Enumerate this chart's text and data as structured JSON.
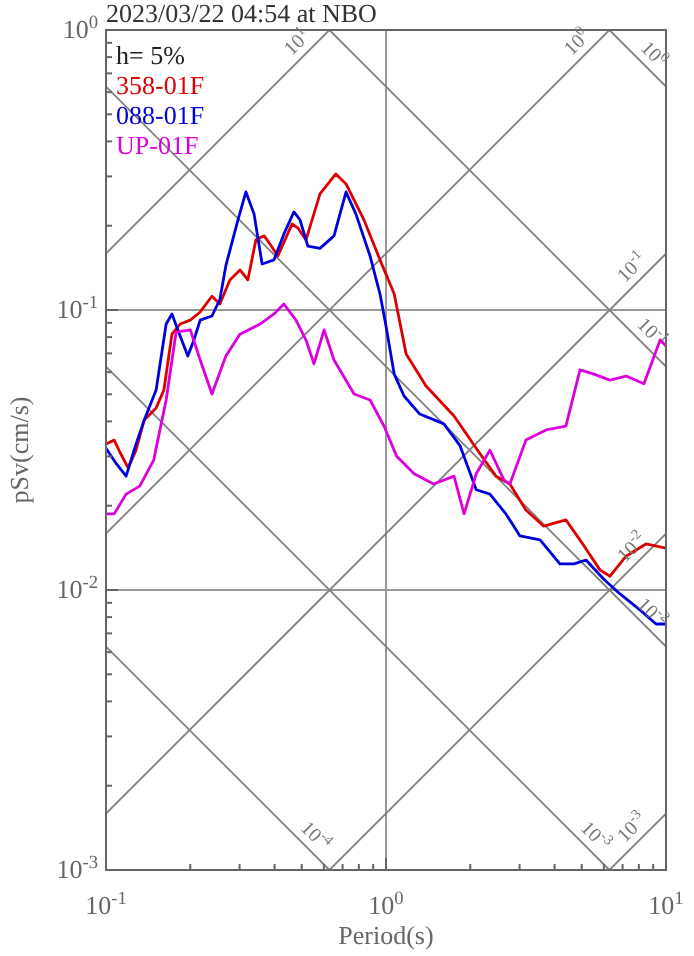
{
  "chart_data": {
    "type": "line",
    "title": "2023/03/22 04:54 at NBO",
    "xlabel": "Period(s)",
    "ylabel": "pSv(cm/s)",
    "legend_title": "h= 5%",
    "legend": "top left",
    "log": "xy",
    "grid": true,
    "xlim": [
      0.1,
      10
    ],
    "ylim": [
      0.001,
      1
    ],
    "xticks": [
      {
        "value": 0.1,
        "label": "10$^{-1}$"
      },
      {
        "value": 0.2,
        "label": null
      },
      {
        "value": 0.3,
        "label": null
      },
      {
        "value": 0.4,
        "label": null
      },
      {
        "value": 0.5,
        "label": null
      },
      {
        "value": 0.6,
        "label": null
      },
      {
        "value": 0.7,
        "label": null
      },
      {
        "value": 0.8,
        "label": null
      },
      {
        "value": 0.9,
        "label": null
      },
      {
        "value": 1,
        "label": "10$^{0}$"
      },
      {
        "value": 2,
        "label": null
      },
      {
        "value": 3,
        "label": null
      },
      {
        "value": 4,
        "label": null
      },
      {
        "value": 5,
        "label": null
      },
      {
        "value": 6,
        "label": null
      },
      {
        "value": 7,
        "label": null
      },
      {
        "value": 8,
        "label": null
      },
      {
        "value": 9,
        "label": null
      },
      {
        "value": 10,
        "label": "10$^{1}$"
      }
    ],
    "yticks": [
      {
        "value": 0.001,
        "label": "10$^{-3}$"
      },
      {
        "value": 0.002,
        "label": null
      },
      {
        "value": 0.003,
        "label": null
      },
      {
        "value": 0.004,
        "label": null
      },
      {
        "value": 0.005,
        "label": null
      },
      {
        "value": 0.006,
        "label": null
      },
      {
        "value": 0.007,
        "label": null
      },
      {
        "value": 0.008,
        "label": null
      },
      {
        "value": 0.009,
        "label": null
      },
      {
        "value": 0.01,
        "label": "10$^{-2}$"
      },
      {
        "value": 0.02,
        "label": null
      },
      {
        "value": 0.03,
        "label": null
      },
      {
        "value": 0.04,
        "label": null
      },
      {
        "value": 0.05,
        "label": null
      },
      {
        "value": 0.06,
        "label": null
      },
      {
        "value": 0.07,
        "label": null
      },
      {
        "value": 0.08,
        "label": null
      },
      {
        "value": 0.09,
        "label": null
      },
      {
        "value": 0.1,
        "label": "10$^{-1}$"
      },
      {
        "value": 0.2,
        "label": null
      },
      {
        "value": 0.3,
        "label": null
      },
      {
        "value": 0.4,
        "label": null
      },
      {
        "value": 0.5,
        "label": null
      },
      {
        "value": 0.6,
        "label": null
      },
      {
        "value": 0.7,
        "label": null
      },
      {
        "value": 0.8,
        "label": null
      },
      {
        "value": 0.9,
        "label": null
      },
      {
        "value": 1,
        "label": "10$^{0}$"
      }
    ],
    "series": [
      {
        "line_style": "solid",
        "color": "#808080",
        "name": "10$^{1}$",
        "x": [
          0.1,
          0.628
        ],
        "values": [
          0.159,
          1
        ]
      },
      {
        "line_style": "solid",
        "color": "#808080",
        "name": "10$^{0}$",
        "x": [
          0.1,
          6.28
        ],
        "values": [
          0.0159,
          1
        ]
      },
      {
        "line_style": "solid",
        "color": "#808080",
        "name": "10$^{-1}$",
        "x": [
          0.1,
          10
        ],
        "values": [
          0.00159,
          0.159
        ]
      },
      {
        "line_style": "solid",
        "color": "#808080",
        "name": "10$^{-2}$",
        "x": [
          0.628,
          10
        ],
        "values": [
          0.001,
          0.0159
        ]
      },
      {
        "line_style": "solid",
        "color": "#808080",
        "name": "10$^{-3}$",
        "x": [
          6.28,
          10
        ],
        "values": [
          0.001,
          0.00159
        ]
      },
      {
        "line_style": "solid",
        "color": "#808080",
        "name": "10$^{0}$",
        "x": [
          6.28,
          10
        ],
        "values": [
          1,
          0.628
        ]
      },
      {
        "line_style": "solid",
        "color": "#808080",
        "name": "10$^{-1}$",
        "x": [
          0.628,
          10
        ],
        "values": [
          1,
          0.0628
        ]
      },
      {
        "line_style": "solid",
        "color": "#808080",
        "name": "10$^{-2}$",
        "x": [
          0.1,
          10
        ],
        "values": [
          0.628,
          0.00628
        ]
      },
      {
        "line_style": "solid",
        "color": "#808080",
        "name": "10$^{-3}$",
        "x": [
          0.1,
          6.28
        ],
        "values": [
          0.0628,
          0.001
        ]
      },
      {
        "line_style": "solid",
        "color": "#808080",
        "name": "10$^{-4}$",
        "x": [
          0.1,
          0.628
        ],
        "values": [
          0.00628,
          0.001
        ]
      },
      {
        "name": "358-01F",
        "color": "#dd0000",
        "x": [
          0.1,
          0.107,
          0.112,
          0.12,
          0.128,
          0.137,
          0.151,
          0.161,
          0.172,
          0.184,
          0.2,
          0.217,
          0.239,
          0.255,
          0.277,
          0.301,
          0.321,
          0.343,
          0.367,
          0.385,
          0.411,
          0.462,
          0.485,
          0.518,
          0.581,
          0.662,
          0.72,
          0.834,
          0.952,
          1.07,
          1.18,
          1.39,
          1.75,
          2.17,
          2.47,
          2.77,
          3.16,
          3.66,
          4.39,
          5.09,
          5.81,
          6.31,
          7.2,
          8.48,
          10
        ],
        "values": [
          0.0332,
          0.0343,
          0.0311,
          0.0273,
          0.0316,
          0.0405,
          0.0447,
          0.0518,
          0.082,
          0.0891,
          0.092,
          0.0984,
          0.112,
          0.105,
          0.128,
          0.139,
          0.128,
          0.178,
          0.184,
          0.172,
          0.156,
          0.203,
          0.196,
          0.178,
          0.26,
          0.306,
          0.282,
          0.21,
          0.151,
          0.114,
          0.0697,
          0.0535,
          0.0418,
          0.0306,
          0.0255,
          0.0239,
          0.0193,
          0.0169,
          0.0178,
          0.0144,
          0.0118,
          0.0112,
          0.0132,
          0.0146,
          0.0141
        ]
      },
      {
        "name": "088-01F",
        "color": "#0000dd",
        "x": [
          0.1,
          0.109,
          0.118,
          0.128,
          0.137,
          0.151,
          0.164,
          0.172,
          0.184,
          0.196,
          0.206,
          0.217,
          0.239,
          0.255,
          0.268,
          0.296,
          0.316,
          0.338,
          0.361,
          0.398,
          0.432,
          0.469,
          0.493,
          0.526,
          0.581,
          0.652,
          0.72,
          0.781,
          0.877,
          0.952,
          1.0,
          1.07,
          1.16,
          1.32,
          1.61,
          1.84,
          2.1,
          2.35,
          2.68,
          3.01,
          3.55,
          4.18,
          4.69,
          5.18,
          6.01,
          6.85,
          8.07,
          9.21,
          10
        ],
        "values": [
          0.0321,
          0.0282,
          0.0255,
          0.0332,
          0.0405,
          0.0518,
          0.0891,
          0.0968,
          0.0807,
          0.0685,
          0.0781,
          0.092,
          0.0952,
          0.109,
          0.144,
          0.21,
          0.264,
          0.22,
          0.146,
          0.151,
          0.187,
          0.224,
          0.21,
          0.169,
          0.166,
          0.184,
          0.264,
          0.22,
          0.156,
          0.114,
          0.0877,
          0.059,
          0.0493,
          0.0425,
          0.0392,
          0.0327,
          0.0228,
          0.022,
          0.0187,
          0.0156,
          0.0151,
          0.0124,
          0.0124,
          0.0128,
          0.0109,
          0.00968,
          0.00849,
          0.00756,
          0.00756
        ]
      },
      {
        "name": "UP-01F",
        "color": "#dd00dd",
        "x": [
          0.1,
          0.107,
          0.118,
          0.132,
          0.148,
          0.164,
          0.178,
          0.2,
          0.217,
          0.239,
          0.268,
          0.301,
          0.355,
          0.398,
          0.432,
          0.477,
          0.518,
          0.553,
          0.601,
          0.652,
          0.769,
          0.877,
          0.984,
          1.09,
          1.26,
          1.48,
          1.75,
          1.9,
          2.1,
          2.35,
          2.64,
          2.77,
          3.16,
          3.73,
          4.39,
          4.93,
          5.53,
          6.31,
          7.2,
          8.34,
          9.53,
          10
        ],
        "values": [
          0.0187,
          0.0187,
          0.022,
          0.0235,
          0.0291,
          0.0477,
          0.0834,
          0.0849,
          0.0663,
          0.0501,
          0.0685,
          0.082,
          0.0891,
          0.0968,
          0.105,
          0.092,
          0.0781,
          0.0642,
          0.0849,
          0.0663,
          0.0501,
          0.0477,
          0.0385,
          0.0301,
          0.026,
          0.0239,
          0.0255,
          0.0187,
          0.026,
          0.0316,
          0.0247,
          0.0239,
          0.0343,
          0.0373,
          0.0385,
          0.0611,
          0.059,
          0.0562,
          0.0581,
          0.0545,
          0.0781,
          0.0743
        ]
      }
    ]
  }
}
